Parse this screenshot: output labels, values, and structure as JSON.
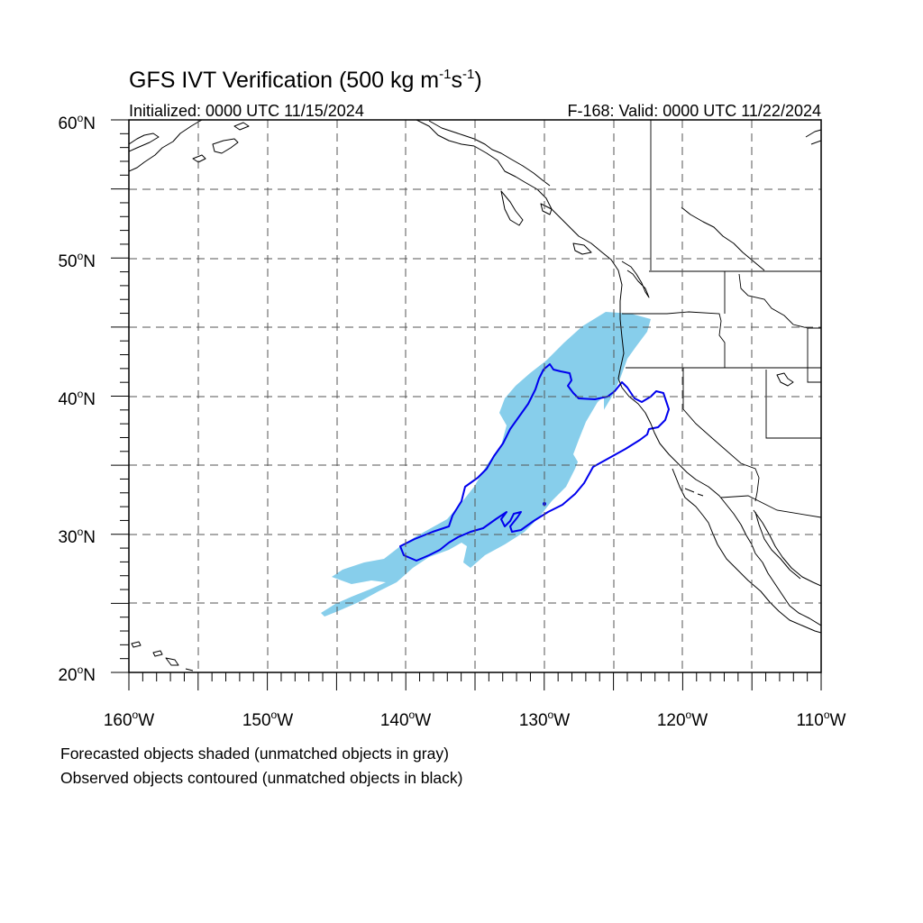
{
  "title": {
    "main": "GFS IVT Verification (500 kg m",
    "exp1": "-1",
    "mid": "s",
    "exp2": "-1",
    "tail": ")"
  },
  "subtitle": {
    "initialized": "Initialized: 0000 UTC 11/15/2024",
    "valid": "F-168: Valid: 0000 UTC 11/22/2024"
  },
  "legend": {
    "forecast": "Forecasted objects shaded (unmatched objects in gray)",
    "observed": "Observed objects contoured (unmatched objects in black)"
  },
  "map": {
    "lon_range": [
      -160,
      -110
    ],
    "lat_range": [
      20,
      60
    ],
    "lat_labels": [
      {
        "value": 60,
        "deg": "60",
        "hem": "N"
      },
      {
        "value": 50,
        "deg": "50",
        "hem": "N"
      },
      {
        "value": 40,
        "deg": "40",
        "hem": "N"
      },
      {
        "value": 30,
        "deg": "30",
        "hem": "N"
      },
      {
        "value": 20,
        "deg": "20",
        "hem": "N"
      }
    ],
    "lon_labels": [
      {
        "value": -160,
        "deg": "160",
        "hem": "W"
      },
      {
        "value": -150,
        "deg": "150",
        "hem": "W"
      },
      {
        "value": -140,
        "deg": "140",
        "hem": "W"
      },
      {
        "value": -130,
        "deg": "130",
        "hem": "W"
      },
      {
        "value": -120,
        "deg": "120",
        "hem": "W"
      },
      {
        "value": -110,
        "deg": "110",
        "hem": "W"
      }
    ],
    "colors": {
      "forecast_fill": "#87ceeb",
      "observed_contour": "#0000ee",
      "coast": "#000000",
      "grid": "#555555"
    }
  }
}
